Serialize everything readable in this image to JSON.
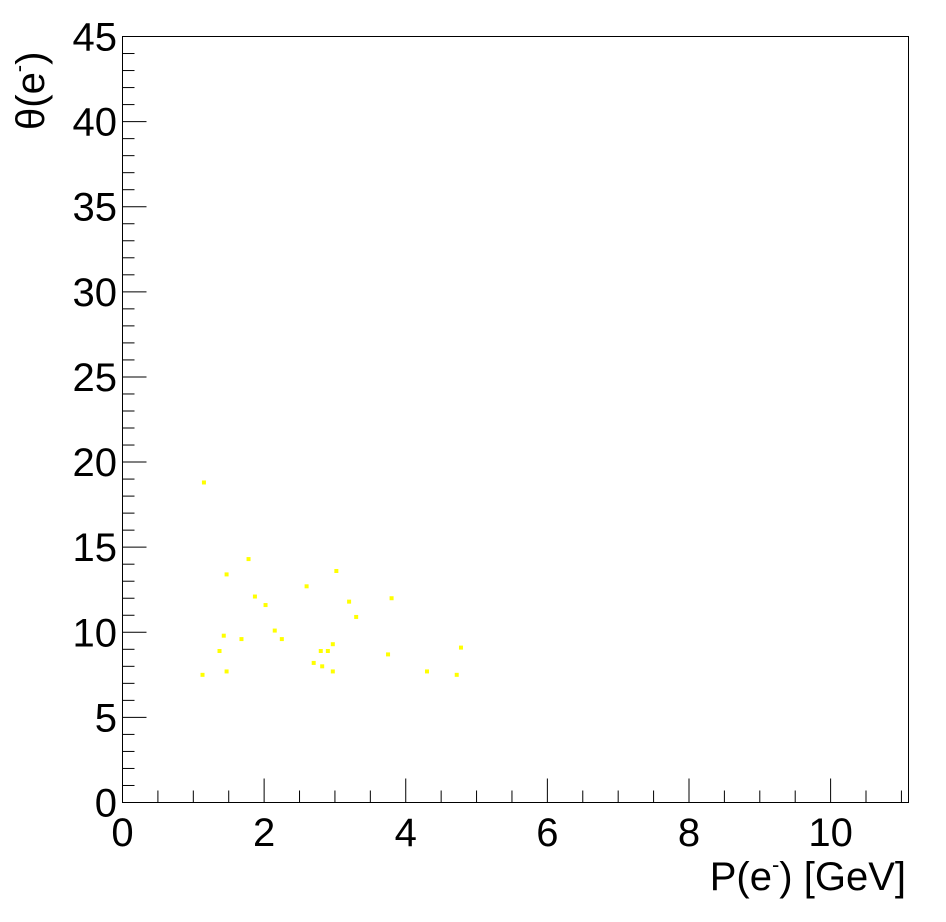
{
  "chart_data": {
    "type": "scatter",
    "title": "",
    "xlabel": {
      "base": "P(e",
      "sup": "-",
      "tail": ") [GeV]"
    },
    "ylabel": {
      "base": "θ(e",
      "sup": "-",
      "tail": ")"
    },
    "xlim": [
      0,
      11.1
    ],
    "ylim": [
      0,
      45
    ],
    "x_ticks": [
      0,
      2,
      4,
      6,
      8,
      10
    ],
    "y_ticks": [
      0,
      5,
      10,
      15,
      20,
      25,
      30,
      35,
      40,
      45
    ],
    "x_tick_labels": [
      "0",
      "2",
      "4",
      "6",
      "8",
      "10"
    ],
    "y_tick_labels": [
      "0",
      "5",
      "10",
      "15",
      "20",
      "25",
      "30",
      "35",
      "40",
      "45"
    ],
    "grid": false,
    "legend": "none",
    "marker_color": "#ffff00",
    "series": [
      {
        "points": [
          [
            1.15,
            18.8
          ],
          [
            1.78,
            14.3
          ],
          [
            1.47,
            13.4
          ],
          [
            1.87,
            12.1
          ],
          [
            2.02,
            11.6
          ],
          [
            2.6,
            12.7
          ],
          [
            3.02,
            13.6
          ],
          [
            3.2,
            11.8
          ],
          [
            3.8,
            12.0
          ],
          [
            3.3,
            10.9
          ],
          [
            2.15,
            10.1
          ],
          [
            2.25,
            9.6
          ],
          [
            1.68,
            9.6
          ],
          [
            1.43,
            9.8
          ],
          [
            1.37,
            8.9
          ],
          [
            2.8,
            8.9
          ],
          [
            2.9,
            8.9
          ],
          [
            2.97,
            9.3
          ],
          [
            2.7,
            8.2
          ],
          [
            2.82,
            8.0
          ],
          [
            2.97,
            7.7
          ],
          [
            3.75,
            8.7
          ],
          [
            1.47,
            7.7
          ],
          [
            1.13,
            7.5
          ],
          [
            4.3,
            7.7
          ],
          [
            4.72,
            7.5
          ],
          [
            4.78,
            9.1
          ]
        ]
      }
    ]
  }
}
